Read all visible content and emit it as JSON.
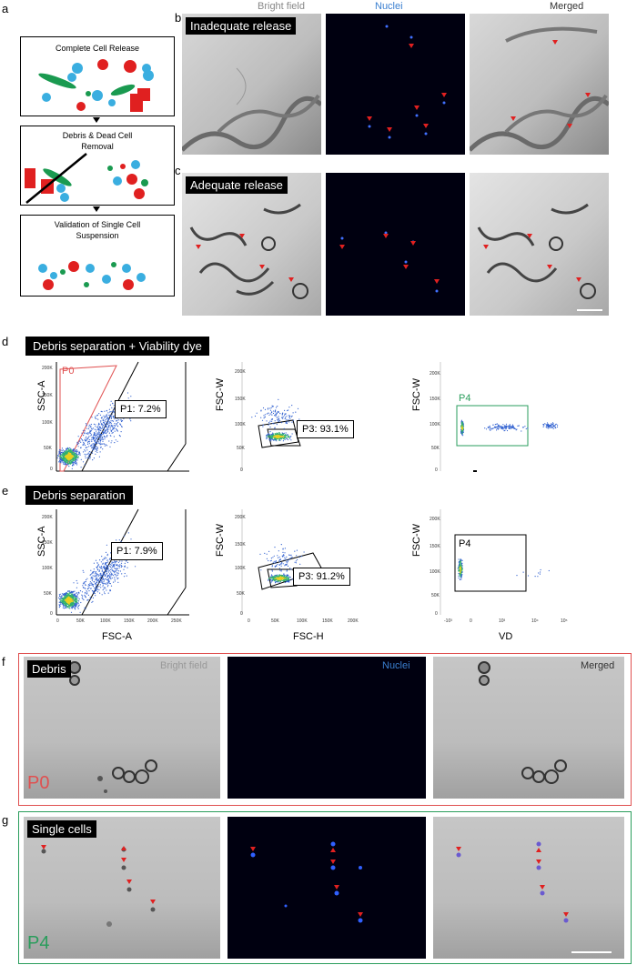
{
  "panel_labels": {
    "a": "a",
    "b": "b",
    "c": "c",
    "d": "d",
    "e": "e",
    "f": "f",
    "g": "g"
  },
  "flowchart": {
    "step1": "Complete Cell Release",
    "step2_line1": "Debris & Dead Cell",
    "step2_line2": "Removal",
    "step3_line1": "Validation of Single Cell",
    "step3_line2": "Suspension"
  },
  "channels": {
    "bright_field": "Bright field",
    "nuclei": "Nuclei",
    "merged": "Merged"
  },
  "row_b": {
    "title": "Inadequate release"
  },
  "row_c": {
    "title": "Adequate release"
  },
  "row_d": {
    "title": "Debris separation + Viability dye"
  },
  "row_e": {
    "title": "Debris separation"
  },
  "row_f": {
    "title": "Debris",
    "gate_label": "P0"
  },
  "row_g": {
    "title": "Single cells",
    "gate_label": "P4"
  },
  "axes": {
    "ssc_a": "SSC-A",
    "fsc_a": "FSC-A",
    "fsc_w": "FSC-W",
    "fsc_h": "FSC-H",
    "vd": "VD"
  },
  "ticks": {
    "y": [
      "200K",
      "150K",
      "100K",
      "50K",
      "0"
    ],
    "x_lin": [
      "0",
      "50K",
      "100K",
      "150K",
      "200K",
      "250K"
    ],
    "x_lin2": [
      "0",
      "50K",
      "100K",
      "150K",
      "200K"
    ],
    "x_log": [
      "-10³",
      "0",
      "10³",
      "10⁴",
      "10⁵"
    ]
  },
  "colors": {
    "red": "#e02020",
    "blue": "#2060e0",
    "green": "#1a9a50",
    "gate_red": "#e05050",
    "gate_green": "#2a9d5c"
  },
  "chart_data": [
    {
      "type": "scatter",
      "panel": "d",
      "xlabel": "FSC-A",
      "ylabel": "SSC-A",
      "gates": [
        {
          "name": "P0"
        },
        {
          "name": "P1",
          "percent": 7.2
        }
      ]
    },
    {
      "type": "scatter",
      "panel": "d",
      "xlabel": "FSC-H",
      "ylabel": "FSC-W",
      "gates": [
        {
          "name": "P3",
          "percent": 93.1
        }
      ]
    },
    {
      "type": "scatter",
      "panel": "d",
      "xlabel": "",
      "ylabel": "FSC-W",
      "gates": [
        {
          "name": "P4"
        }
      ]
    },
    {
      "type": "scatter",
      "panel": "e",
      "xlabel": "FSC-A",
      "ylabel": "SSC-A",
      "gates": [
        {
          "name": "P1",
          "percent": 7.9
        }
      ]
    },
    {
      "type": "scatter",
      "panel": "e",
      "xlabel": "FSC-H",
      "ylabel": "FSC-W",
      "gates": [
        {
          "name": "P3",
          "percent": 91.2
        }
      ]
    },
    {
      "type": "scatter",
      "panel": "e",
      "xlabel": "VD",
      "ylabel": "FSC-W",
      "gates": [
        {
          "name": "P4"
        }
      ]
    }
  ],
  "gate_text": {
    "d1_p0": "P0",
    "d1_p1": "P1: 7.2%",
    "d2_p3": "P3: 93.1%",
    "d3_p4": "P4",
    "e1_p1": "P1: 7.9%",
    "e2_p3": "P3: 91.2%",
    "e3_p4": "P4"
  }
}
